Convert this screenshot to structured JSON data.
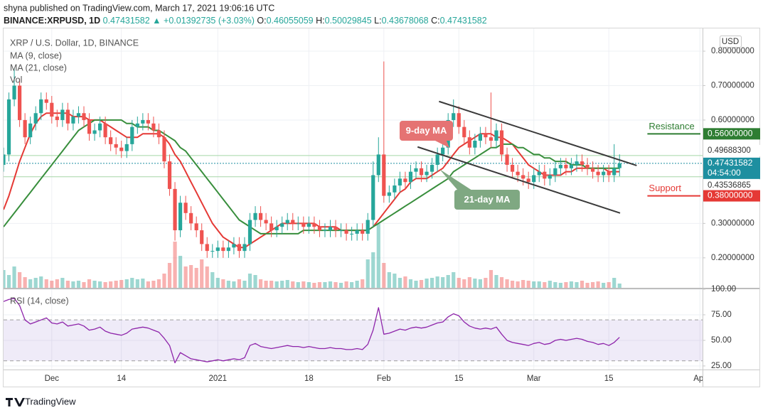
{
  "header": {
    "published": "shyna published on TradingView.com, March 17, 2021 19:06:16 UTC",
    "symbol": "BINANCE:XRPUSD, 1D",
    "last": "0.47431582",
    "arrow": "▲",
    "change": "+0.01392735 (+3.03%)",
    "ohlc": [
      {
        "label": "O:",
        "value": "0.46055059"
      },
      {
        "label": "H:",
        "value": "0.50029845"
      },
      {
        "label": "L:",
        "value": "0.43678068"
      },
      {
        "label": "C:",
        "value": "0.47431582"
      }
    ]
  },
  "footer": "TradingView",
  "chart_data": {
    "type": "candlestick",
    "title": "XRP / U.S. Dollar, 1D, BINANCE",
    "currency": "USD",
    "up_color": "#26a69a",
    "down_color": "#ef5350",
    "grid": true,
    "xlim": [
      0,
      130.5
    ],
    "xticks": [
      {
        "value": 9,
        "label": "Dec"
      },
      {
        "value": 22,
        "label": "14"
      },
      {
        "value": 40,
        "label": "2021"
      },
      {
        "value": 57,
        "label": "18"
      },
      {
        "value": 71,
        "label": "Feb"
      },
      {
        "value": 85,
        "label": "15"
      },
      {
        "value": 99,
        "label": "Mar"
      },
      {
        "value": 113,
        "label": "15"
      },
      {
        "value": 130,
        "label": "Apr"
      }
    ],
    "ylim": [
      0.113,
      0.866
    ],
    "yticks": [
      {
        "value": 0.8,
        "label": "0.80000000"
      },
      {
        "value": 0.7,
        "label": "0.70000000"
      },
      {
        "value": 0.6,
        "label": "0.60000000"
      },
      {
        "value": 0.3,
        "label": "0.30000000"
      },
      {
        "value": 0.2,
        "label": "0.20000000"
      }
    ],
    "open": [
      0.47,
      0.5,
      0.66,
      0.7,
      0.6,
      0.55,
      0.59,
      0.62,
      0.66,
      0.65,
      0.61,
      0.6,
      0.63,
      0.59,
      0.61,
      0.62,
      0.6,
      0.56,
      0.57,
      0.59,
      0.55,
      0.53,
      0.52,
      0.51,
      0.53,
      0.58,
      0.59,
      0.6,
      0.59,
      0.57,
      0.55,
      0.48,
      0.4,
      0.28,
      0.36,
      0.33,
      0.3,
      0.28,
      0.24,
      0.22,
      0.22,
      0.23,
      0.22,
      0.23,
      0.24,
      0.22,
      0.24,
      0.31,
      0.33,
      0.31,
      0.3,
      0.28,
      0.29,
      0.3,
      0.31,
      0.3,
      0.3,
      0.29,
      0.3,
      0.29,
      0.28,
      0.28,
      0.29,
      0.28,
      0.28,
      0.27,
      0.27,
      0.28,
      0.27,
      0.31,
      0.44,
      0.5,
      0.38,
      0.39,
      0.41,
      0.43,
      0.42,
      0.45,
      0.46,
      0.44,
      0.45,
      0.47,
      0.5,
      0.52,
      0.6,
      0.62,
      0.58,
      0.55,
      0.52,
      0.54,
      0.56,
      0.55,
      0.54,
      0.57,
      0.5,
      0.47,
      0.45,
      0.44,
      0.43,
      0.42,
      0.44,
      0.45,
      0.43,
      0.44,
      0.46,
      0.47,
      0.46,
      0.47,
      0.48,
      0.47,
      0.46,
      0.45,
      0.44,
      0.45,
      0.44,
      0.46055059
    ],
    "high": [
      0.52,
      0.68,
      0.75,
      0.72,
      0.62,
      0.61,
      0.64,
      0.68,
      0.68,
      0.67,
      0.63,
      0.65,
      0.65,
      0.63,
      0.64,
      0.64,
      0.62,
      0.59,
      0.61,
      0.61,
      0.57,
      0.55,
      0.54,
      0.55,
      0.6,
      0.61,
      0.62,
      0.62,
      0.61,
      0.59,
      0.57,
      0.5,
      0.42,
      0.38,
      0.38,
      0.35,
      0.32,
      0.3,
      0.26,
      0.24,
      0.25,
      0.25,
      0.25,
      0.26,
      0.26,
      0.26,
      0.33,
      0.35,
      0.35,
      0.33,
      0.32,
      0.31,
      0.32,
      0.33,
      0.33,
      0.32,
      0.32,
      0.32,
      0.32,
      0.31,
      0.3,
      0.31,
      0.31,
      0.3,
      0.3,
      0.29,
      0.3,
      0.3,
      0.33,
      0.48,
      0.55,
      0.77,
      0.41,
      0.43,
      0.45,
      0.45,
      0.47,
      0.48,
      0.48,
      0.47,
      0.49,
      0.52,
      0.54,
      0.62,
      0.66,
      0.64,
      0.6,
      0.57,
      0.56,
      0.58,
      0.58,
      0.68,
      0.59,
      0.59,
      0.52,
      0.49,
      0.47,
      0.46,
      0.45,
      0.46,
      0.47,
      0.47,
      0.46,
      0.48,
      0.49,
      0.49,
      0.49,
      0.5,
      0.5,
      0.49,
      0.48,
      0.47,
      0.47,
      0.47,
      0.53,
      0.50029845
    ],
    "low": [
      0.45,
      0.48,
      0.64,
      0.58,
      0.53,
      0.53,
      0.57,
      0.6,
      0.63,
      0.59,
      0.58,
      0.58,
      0.57,
      0.57,
      0.59,
      0.58,
      0.54,
      0.54,
      0.55,
      0.53,
      0.51,
      0.5,
      0.49,
      0.49,
      0.51,
      0.56,
      0.57,
      0.57,
      0.55,
      0.53,
      0.46,
      0.38,
      0.25,
      0.26,
      0.31,
      0.28,
      0.26,
      0.22,
      0.2,
      0.2,
      0.2,
      0.2,
      0.2,
      0.21,
      0.2,
      0.2,
      0.22,
      0.29,
      0.29,
      0.28,
      0.26,
      0.26,
      0.27,
      0.28,
      0.28,
      0.28,
      0.27,
      0.27,
      0.27,
      0.26,
      0.26,
      0.26,
      0.26,
      0.26,
      0.25,
      0.25,
      0.25,
      0.25,
      0.25,
      0.29,
      0.42,
      0.36,
      0.36,
      0.37,
      0.39,
      0.4,
      0.4,
      0.43,
      0.42,
      0.42,
      0.43,
      0.45,
      0.48,
      0.5,
      0.58,
      0.56,
      0.53,
      0.5,
      0.5,
      0.52,
      0.53,
      0.52,
      0.52,
      0.48,
      0.45,
      0.43,
      0.42,
      0.41,
      0.4,
      0.4,
      0.42,
      0.41,
      0.41,
      0.42,
      0.44,
      0.44,
      0.44,
      0.45,
      0.45,
      0.44,
      0.43,
      0.42,
      0.42,
      0.42,
      0.42,
      0.43678068
    ],
    "close": [
      0.5,
      0.66,
      0.7,
      0.6,
      0.55,
      0.59,
      0.62,
      0.66,
      0.65,
      0.61,
      0.6,
      0.63,
      0.59,
      0.61,
      0.62,
      0.6,
      0.56,
      0.57,
      0.59,
      0.55,
      0.53,
      0.52,
      0.51,
      0.53,
      0.58,
      0.59,
      0.6,
      0.59,
      0.57,
      0.55,
      0.48,
      0.4,
      0.28,
      0.36,
      0.33,
      0.3,
      0.28,
      0.24,
      0.22,
      0.22,
      0.23,
      0.22,
      0.23,
      0.24,
      0.22,
      0.24,
      0.31,
      0.33,
      0.31,
      0.3,
      0.28,
      0.29,
      0.3,
      0.31,
      0.3,
      0.3,
      0.29,
      0.3,
      0.29,
      0.28,
      0.28,
      0.29,
      0.28,
      0.28,
      0.27,
      0.27,
      0.28,
      0.27,
      0.31,
      0.44,
      0.5,
      0.38,
      0.39,
      0.41,
      0.43,
      0.42,
      0.45,
      0.46,
      0.44,
      0.45,
      0.47,
      0.5,
      0.52,
      0.6,
      0.62,
      0.58,
      0.55,
      0.52,
      0.54,
      0.56,
      0.55,
      0.54,
      0.57,
      0.5,
      0.47,
      0.45,
      0.44,
      0.43,
      0.42,
      0.44,
      0.45,
      0.43,
      0.44,
      0.46,
      0.47,
      0.46,
      0.47,
      0.48,
      0.47,
      0.46,
      0.45,
      0.44,
      0.45,
      0.44,
      0.46,
      0.47431582
    ],
    "series": [
      {
        "name": "MA (9, close)",
        "color": "#e53935",
        "values": [
          0.34,
          0.38,
          0.43,
          0.48,
          0.52,
          0.56,
          0.59,
          0.61,
          0.62,
          0.62,
          0.62,
          0.62,
          0.62,
          0.61,
          0.61,
          0.61,
          0.6,
          0.6,
          0.6,
          0.59,
          0.58,
          0.57,
          0.56,
          0.55,
          0.55,
          0.55,
          0.56,
          0.56,
          0.56,
          0.56,
          0.55,
          0.53,
          0.5,
          0.48,
          0.45,
          0.42,
          0.39,
          0.36,
          0.33,
          0.3,
          0.28,
          0.26,
          0.25,
          0.24,
          0.23,
          0.23,
          0.24,
          0.25,
          0.26,
          0.27,
          0.28,
          0.29,
          0.3,
          0.3,
          0.3,
          0.3,
          0.3,
          0.3,
          0.3,
          0.29,
          0.29,
          0.29,
          0.29,
          0.28,
          0.28,
          0.28,
          0.28,
          0.28,
          0.28,
          0.29,
          0.31,
          0.33,
          0.35,
          0.37,
          0.39,
          0.4,
          0.42,
          0.43,
          0.43,
          0.43,
          0.44,
          0.45,
          0.46,
          0.48,
          0.5,
          0.52,
          0.53,
          0.54,
          0.55,
          0.56,
          0.56,
          0.56,
          0.55,
          0.55,
          0.54,
          0.53,
          0.51,
          0.49,
          0.47,
          0.46,
          0.45,
          0.44,
          0.44,
          0.44,
          0.44,
          0.45,
          0.45,
          0.46,
          0.46,
          0.46,
          0.46,
          0.46,
          0.46,
          0.45,
          0.45,
          0.45
        ]
      },
      {
        "name": "MA (21, close)",
        "color": "#388e3c",
        "values": [
          0.29,
          0.31,
          0.33,
          0.35,
          0.37,
          0.39,
          0.41,
          0.43,
          0.45,
          0.47,
          0.49,
          0.51,
          0.53,
          0.55,
          0.57,
          0.58,
          0.59,
          0.6,
          0.6,
          0.6,
          0.6,
          0.6,
          0.6,
          0.59,
          0.59,
          0.58,
          0.58,
          0.58,
          0.57,
          0.57,
          0.56,
          0.55,
          0.54,
          0.52,
          0.51,
          0.49,
          0.47,
          0.45,
          0.43,
          0.41,
          0.39,
          0.37,
          0.35,
          0.33,
          0.31,
          0.3,
          0.29,
          0.28,
          0.27,
          0.27,
          0.27,
          0.27,
          0.27,
          0.27,
          0.27,
          0.27,
          0.28,
          0.28,
          0.28,
          0.28,
          0.28,
          0.28,
          0.28,
          0.28,
          0.28,
          0.28,
          0.28,
          0.28,
          0.28,
          0.29,
          0.3,
          0.31,
          0.32,
          0.33,
          0.34,
          0.35,
          0.36,
          0.37,
          0.38,
          0.39,
          0.4,
          0.41,
          0.42,
          0.43,
          0.45,
          0.46,
          0.47,
          0.48,
          0.49,
          0.5,
          0.51,
          0.52,
          0.52,
          0.53,
          0.53,
          0.53,
          0.52,
          0.52,
          0.51,
          0.5,
          0.5,
          0.49,
          0.49,
          0.48,
          0.48,
          0.48,
          0.47,
          0.47,
          0.47,
          0.46,
          0.46,
          0.46,
          0.46,
          0.46,
          0.46,
          0.46
        ]
      }
    ],
    "volume": {
      "name": "Vol",
      "ylim": [
        0,
        100
      ],
      "values": [
        25,
        18,
        30,
        22,
        15,
        12,
        14,
        16,
        12,
        10,
        12,
        14,
        10,
        9,
        10,
        8,
        12,
        10,
        9,
        8,
        9,
        10,
        11,
        12,
        14,
        12,
        13,
        9,
        10,
        12,
        20,
        35,
        65,
        45,
        30,
        32,
        28,
        40,
        30,
        22,
        14,
        12,
        10,
        9,
        12,
        10,
        20,
        18,
        12,
        10,
        10,
        9,
        10,
        11,
        9,
        8,
        9,
        8,
        7,
        8,
        8,
        9,
        8,
        7,
        9,
        8,
        10,
        12,
        40,
        50,
        90,
        35,
        22,
        20,
        14,
        16,
        12,
        10,
        11,
        13,
        14,
        16,
        15,
        18,
        22,
        14,
        12,
        15,
        13,
        12,
        14,
        25,
        18,
        15,
        12,
        10,
        9,
        11,
        10,
        9,
        9,
        8,
        10,
        8,
        7,
        8,
        9,
        8,
        10,
        7,
        8,
        9,
        7,
        8,
        14,
        6
      ]
    },
    "price_lines": [
      {
        "value": 0.496883,
        "label": "0.49688300",
        "color": "#a5d6a7"
      },
      {
        "value": 0.47431582,
        "label": "0.47431582",
        "time": "04:54:00",
        "color": "#1e8fa0",
        "dashed": true
      },
      {
        "value": 0.43536865,
        "label": "0.43536865",
        "color": "#a5d6a7"
      }
    ],
    "levels": [
      {
        "label": "Resistance",
        "value": 0.56,
        "value_label": "0.56000000",
        "color": "#2e7d32",
        "x": [
          120.2,
          130.1
        ]
      },
      {
        "label": "Support",
        "value": 0.38,
        "value_label": "0.38000000",
        "color": "#e53935",
        "x": [
          120.2,
          130.1
        ]
      }
    ],
    "trend_lines": [
      {
        "x": [
          81.3,
          118.2
        ],
        "y": [
          0.654,
          0.468
        ]
      },
      {
        "x": [
          77.3,
          115.1
        ],
        "y": [
          0.522,
          0.33
        ]
      }
    ],
    "annotations": [
      "9-day MA",
      "21-day MA"
    ],
    "rsi": {
      "name": "RSI (14, close)",
      "color": "#8e24aa",
      "ylim": [
        21.5,
        100
      ],
      "band": [
        30,
        70
      ],
      "yticks": [
        {
          "value": 100,
          "label": "100.00"
        },
        {
          "value": 75,
          "label": "75.00"
        },
        {
          "value": 50,
          "label": "50.00"
        },
        {
          "value": 25,
          "label": "25.00"
        }
      ],
      "values": [
        88,
        90,
        91,
        84,
        70,
        66,
        68,
        70,
        72,
        67,
        66,
        68,
        64,
        65,
        66,
        64,
        60,
        61,
        63,
        59,
        57,
        56,
        55,
        57,
        61,
        62,
        63,
        62,
        60,
        58,
        52,
        45,
        28,
        38,
        35,
        32,
        31,
        30,
        29,
        30,
        31,
        30,
        31,
        32,
        31,
        33,
        45,
        47,
        44,
        43,
        42,
        43,
        44,
        45,
        44,
        44,
        43,
        44,
        43,
        42,
        42,
        43,
        42,
        42,
        41,
        41,
        42,
        41,
        46,
        60,
        82,
        56,
        57,
        59,
        61,
        60,
        62,
        63,
        62,
        63,
        65,
        67,
        68,
        73,
        76,
        74,
        68,
        64,
        62,
        61,
        62,
        61,
        63,
        56,
        50,
        48,
        47,
        46,
        45,
        47,
        48,
        46,
        47,
        50,
        51,
        50,
        51,
        52,
        51,
        49,
        48,
        46,
        47,
        45,
        48,
        53
      ]
    }
  }
}
